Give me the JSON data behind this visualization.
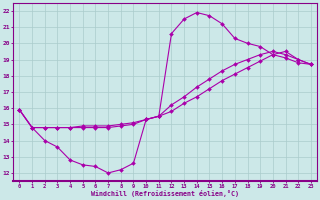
{
  "xlabel": "Windchill (Refroidissement éolien,°C)",
  "xlim": [
    -0.5,
    23.5
  ],
  "ylim": [
    11.5,
    22.5
  ],
  "yticks": [
    12,
    13,
    14,
    15,
    16,
    17,
    18,
    19,
    20,
    21,
    22
  ],
  "xticks": [
    0,
    1,
    2,
    3,
    4,
    5,
    6,
    7,
    8,
    9,
    10,
    11,
    12,
    13,
    14,
    15,
    16,
    17,
    18,
    19,
    20,
    21,
    22,
    23
  ],
  "bg_color": "#cce8e8",
  "line_color": "#aa00aa",
  "grid_color": "#aacccc",
  "curve_upper_x": [
    0,
    1,
    2,
    3,
    4,
    5,
    6,
    7,
    8,
    9,
    10,
    11,
    12,
    13,
    14,
    15,
    16,
    17,
    18,
    19,
    20,
    21,
    22,
    23
  ],
  "curve_upper_y": [
    15.9,
    14.8,
    14.0,
    13.6,
    12.8,
    12.5,
    12.4,
    12.0,
    12.2,
    12.6,
    15.3,
    15.5,
    20.6,
    21.5,
    21.9,
    21.7,
    21.2,
    20.3,
    20.0,
    19.8,
    19.3,
    19.1,
    18.8,
    18.7
  ],
  "curve_lower_x": [
    0,
    1,
    2,
    3,
    4,
    5,
    6,
    7,
    8,
    9,
    10,
    11,
    12,
    13,
    14,
    15,
    16,
    17,
    18,
    19,
    20,
    21,
    22,
    23
  ],
  "curve_lower_y": [
    15.9,
    14.8,
    14.8,
    14.8,
    14.8,
    14.9,
    14.9,
    14.9,
    15.0,
    15.1,
    15.3,
    15.5,
    15.8,
    16.3,
    16.7,
    17.2,
    17.7,
    18.1,
    18.5,
    18.9,
    19.3,
    19.5,
    19.0,
    18.7
  ],
  "curve_diag_x": [
    0,
    1,
    2,
    3,
    4,
    5,
    6,
    7,
    8,
    9,
    10,
    11,
    12,
    13,
    14,
    15,
    16,
    17,
    18,
    19,
    20,
    21,
    22,
    23
  ],
  "curve_diag_y": [
    15.9,
    14.8,
    14.8,
    14.8,
    14.8,
    14.8,
    14.8,
    14.8,
    14.9,
    15.0,
    15.3,
    15.5,
    16.2,
    16.7,
    17.3,
    17.8,
    18.3,
    18.7,
    19.0,
    19.3,
    19.5,
    19.3,
    19.0,
    18.7
  ]
}
